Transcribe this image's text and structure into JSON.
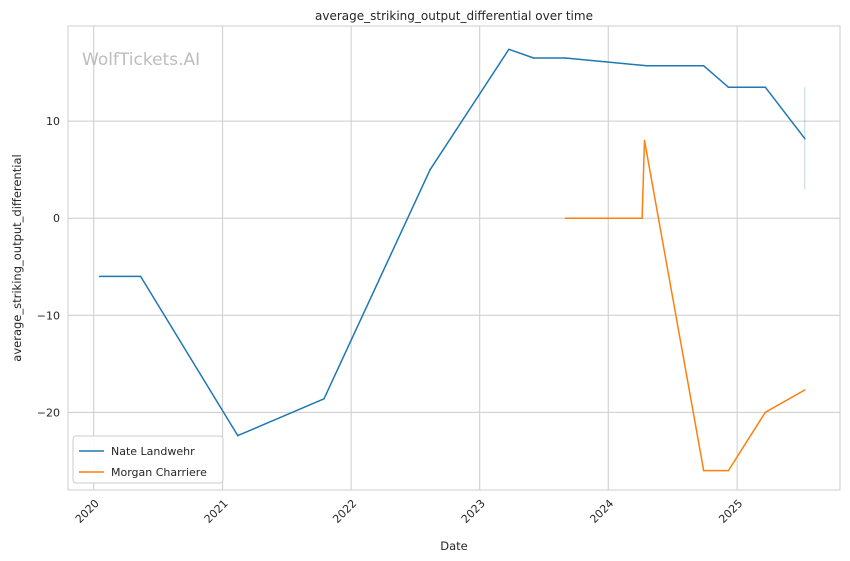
{
  "chart_data": {
    "type": "line",
    "title": "average_striking_output_differential over time",
    "xlabel": "Date",
    "ylabel": "average_striking_output_differential",
    "watermark": "WolfTickets.AI",
    "xlim": [
      "2019-10-20",
      "2025-10-20"
    ],
    "ylim": [
      -28.0,
      19.8
    ],
    "x_ticks": [
      {
        "date": "2020-01-01",
        "label": "2020"
      },
      {
        "date": "2021-01-01",
        "label": "2021"
      },
      {
        "date": "2022-01-01",
        "label": "2022"
      },
      {
        "date": "2023-01-01",
        "label": "2023"
      },
      {
        "date": "2024-01-01",
        "label": "2024"
      },
      {
        "date": "2025-01-01",
        "label": "2025"
      }
    ],
    "y_ticks": [
      {
        "value": 10,
        "label": "10"
      },
      {
        "value": 0,
        "label": "0"
      },
      {
        "value": -10,
        "label": "−10"
      },
      {
        "value": -20,
        "label": "−20"
      }
    ],
    "grid": true,
    "legend_position": "lower-left",
    "series": [
      {
        "name": "Nate Landwehr",
        "color": "#1f77b4",
        "points": [
          {
            "x": "2020-01-18",
            "y": -6.0
          },
          {
            "x": "2020-05-13",
            "y": -6.0
          },
          {
            "x": "2021-02-13",
            "y": -22.4
          },
          {
            "x": "2021-10-16",
            "y": -18.6
          },
          {
            "x": "2022-08-13",
            "y": 5.0
          },
          {
            "x": "2023-03-25",
            "y": 17.4
          },
          {
            "x": "2023-06-03",
            "y": 16.5
          },
          {
            "x": "2023-09-01",
            "y": 16.5
          },
          {
            "x": "2024-04-20",
            "y": 15.7
          },
          {
            "x": "2024-09-28",
            "y": 15.7
          },
          {
            "x": "2024-12-07",
            "y": 13.5
          },
          {
            "x": "2025-03-22",
            "y": 13.5
          },
          {
            "x": "2025-07-12",
            "y": 8.2
          }
        ],
        "error_band": {
          "x": "2025-07-12",
          "low": 3.0,
          "high": 13.5
        }
      },
      {
        "name": "Morgan Charriere",
        "color": "#ff7f0e",
        "points": [
          {
            "x": "2023-09-02",
            "y": 0.0
          },
          {
            "x": "2024-04-06",
            "y": 0.0
          },
          {
            "x": "2024-04-13",
            "y": 8.0
          },
          {
            "x": "2024-09-28",
            "y": -26.0
          },
          {
            "x": "2024-12-07",
            "y": -26.0
          },
          {
            "x": "2025-03-22",
            "y": -20.0
          },
          {
            "x": "2025-07-12",
            "y": -17.7
          }
        ]
      }
    ]
  }
}
